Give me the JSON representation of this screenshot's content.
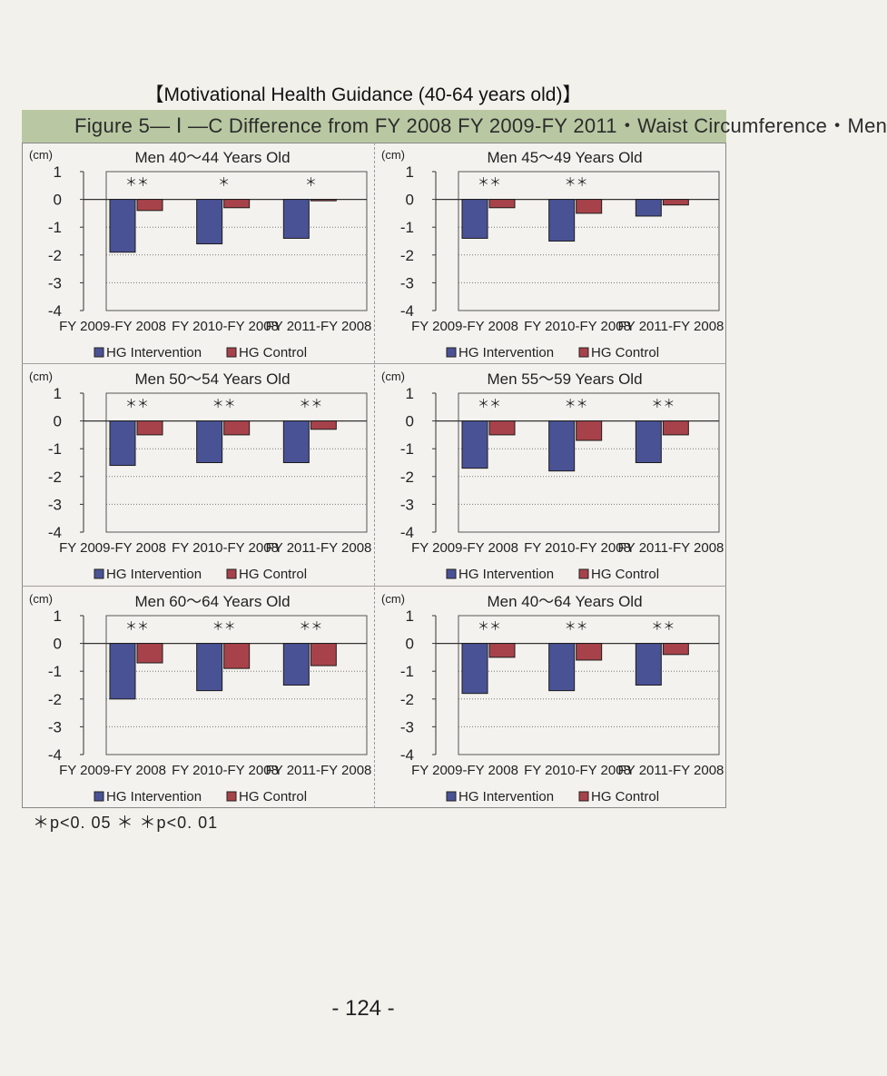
{
  "page_title": "【Motivational Health Guidance  (40-64 years old)】",
  "figure_header": "Figure 5— Ⅰ —C  Difference  from  FY  2008  FY  2009-FY  2011・Waist Circumference・Men",
  "footnote": "＊p<0. 05   ＊ ＊p<0. 01",
  "page_number": "- 124 -",
  "colors": {
    "intervention": "#4a5296",
    "control": "#a8424a",
    "header_band": "#b9c8a2"
  },
  "chart_data": [
    {
      "type": "bar",
      "title": "Men 40～44 Years Old",
      "unit_label": "(cm)",
      "categories": [
        "FY 2009-FY 2008",
        "FY 2010-FY 2008",
        "FY 2011-FY 2008"
      ],
      "series": [
        {
          "name": "HG Intervention",
          "values": [
            -1.9,
            -1.6,
            -1.4
          ]
        },
        {
          "name": "HG Control",
          "values": [
            -0.4,
            -0.3,
            -0.05
          ]
        }
      ],
      "significance": [
        "＊＊",
        "＊",
        "＊"
      ],
      "yticks": [
        1,
        0,
        -1,
        -2,
        -3,
        -4
      ],
      "ylim": [
        -4,
        1
      ]
    },
    {
      "type": "bar",
      "title": "Men 45～49 Years Old",
      "unit_label": "(cm)",
      "categories": [
        "FY 2009-FY 2008",
        "FY 2010-FY 2008",
        "FY 2011-FY 2008"
      ],
      "series": [
        {
          "name": "HG Intervention",
          "values": [
            -1.4,
            -1.5,
            -0.6
          ]
        },
        {
          "name": "HG Control",
          "values": [
            -0.3,
            -0.5,
            -0.2
          ]
        }
      ],
      "significance": [
        "＊＊",
        "＊＊",
        ""
      ],
      "yticks": [
        1,
        0,
        -1,
        -2,
        -3,
        -4
      ],
      "ylim": [
        -4,
        1
      ]
    },
    {
      "type": "bar",
      "title": "Men 50～54 Years Old",
      "unit_label": "(cm)",
      "categories": [
        "FY 2009-FY 2008",
        "FY 2010-FY 2008",
        "FY 2011-FY 2008"
      ],
      "series": [
        {
          "name": "HG Intervention",
          "values": [
            -1.6,
            -1.5,
            -1.5
          ]
        },
        {
          "name": "HG Control",
          "values": [
            -0.5,
            -0.5,
            -0.3
          ]
        }
      ],
      "significance": [
        "＊＊",
        "＊＊",
        "＊＊"
      ],
      "yticks": [
        1,
        0,
        -1,
        -2,
        -3,
        -4
      ],
      "ylim": [
        -4,
        1
      ]
    },
    {
      "type": "bar",
      "title": "Men 55～59 Years Old",
      "unit_label": "(cm)",
      "categories": [
        "FY 2009-FY 2008",
        "FY 2010-FY 2008",
        "FY 2011-FY 2008"
      ],
      "series": [
        {
          "name": "HG Intervention",
          "values": [
            -1.7,
            -1.8,
            -1.5
          ]
        },
        {
          "name": "HG Control",
          "values": [
            -0.5,
            -0.7,
            -0.5
          ]
        }
      ],
      "significance": [
        "＊＊",
        "＊＊",
        "＊＊"
      ],
      "yticks": [
        1,
        0,
        -1,
        -2,
        -3,
        -4
      ],
      "ylim": [
        -4,
        1
      ]
    },
    {
      "type": "bar",
      "title": "Men 60～64 Years Old",
      "unit_label": "(cm)",
      "categories": [
        "FY 2009-FY 2008",
        "FY 2010-FY 2008",
        "FY 2011-FY 2008"
      ],
      "series": [
        {
          "name": "HG Intervention",
          "values": [
            -2.0,
            -1.7,
            -1.5
          ]
        },
        {
          "name": "HG Control",
          "values": [
            -0.7,
            -0.9,
            -0.8
          ]
        }
      ],
      "significance": [
        "＊＊",
        "＊＊",
        "＊＊"
      ],
      "yticks": [
        1,
        0,
        -1,
        -2,
        -3,
        -4
      ],
      "ylim": [
        -4,
        1
      ]
    },
    {
      "type": "bar",
      "title": "Men 40～64 Years Old",
      "unit_label": "(cm)",
      "categories": [
        "FY 2009-FY 2008",
        "FY 2010-FY 2008",
        "FY 2011-FY 2008"
      ],
      "series": [
        {
          "name": "HG Intervention",
          "values": [
            -1.8,
            -1.7,
            -1.5
          ]
        },
        {
          "name": "HG Control",
          "values": [
            -0.5,
            -0.6,
            -0.4
          ]
        }
      ],
      "significance": [
        "＊＊",
        "＊＊",
        "＊＊"
      ],
      "yticks": [
        1,
        0,
        -1,
        -2,
        -3,
        -4
      ],
      "ylim": [
        -4,
        1
      ]
    }
  ]
}
